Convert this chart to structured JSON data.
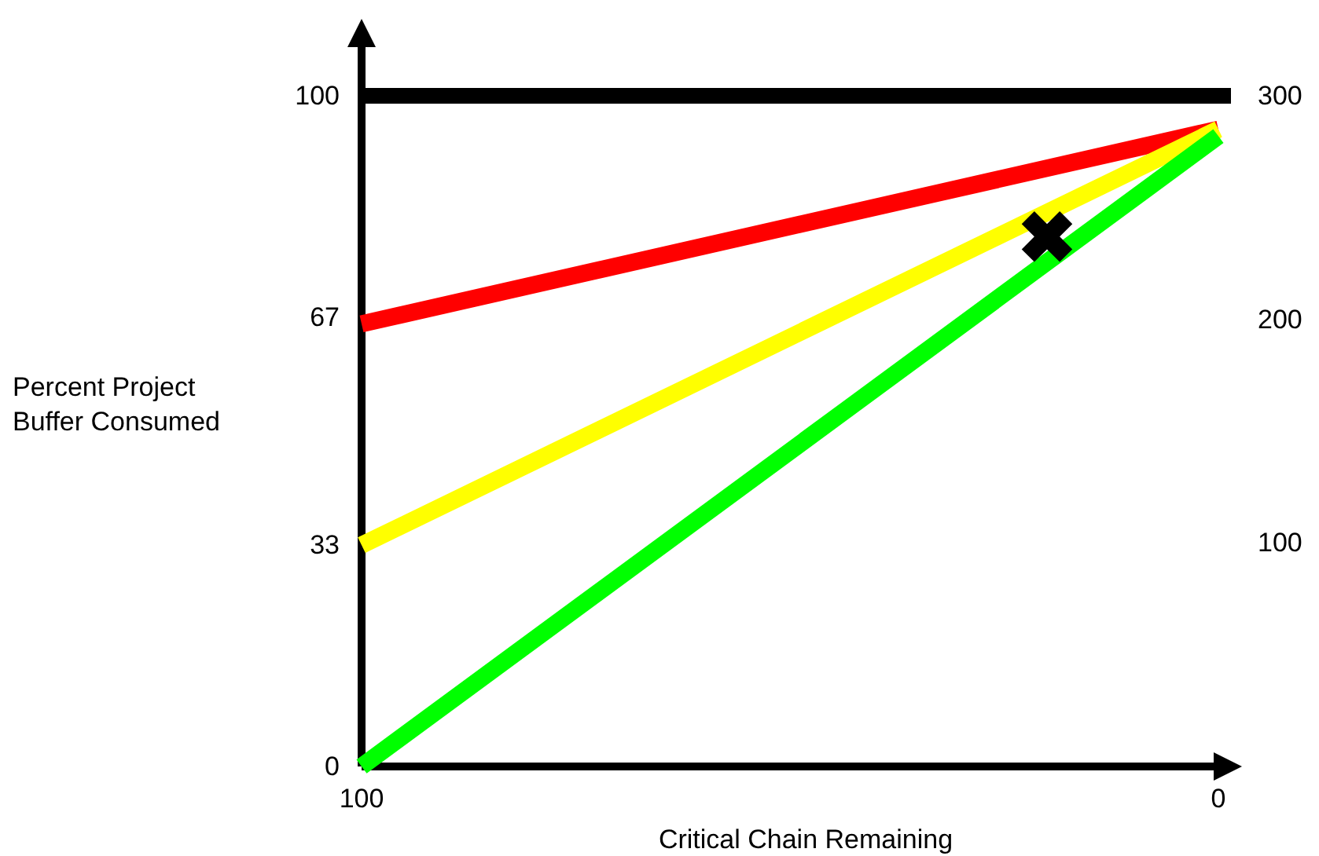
{
  "chart_data": {
    "type": "line",
    "xlabel": "Critical Chain Remaining",
    "ylabel": "Percent Project Buffer Consumed",
    "xlim": [
      100,
      0
    ],
    "xticks": [
      100,
      0
    ],
    "ylim": [
      0,
      100
    ],
    "yticks": [
      0,
      33,
      67,
      100
    ],
    "y2lim": [
      0,
      300
    ],
    "y2ticks": [
      100,
      200,
      300
    ],
    "grid": false,
    "line_style": "solid",
    "ref_lines": [
      {
        "axis": "y",
        "value": 100,
        "color": "#000000"
      }
    ],
    "series": [
      {
        "color": "#ff0000",
        "x": [
          100,
          0
        ],
        "values": [
          66,
          95
        ]
      },
      {
        "color": "#ffff00",
        "x": [
          100,
          0
        ],
        "values": [
          33,
          95
        ]
      },
      {
        "color": "#00ff00",
        "x": [
          100,
          0
        ],
        "values": [
          0,
          94
        ]
      },
      {
        "type": "scatter",
        "marker": "cross",
        "color": "#000000",
        "x": [
          20
        ],
        "values": [
          79
        ]
      }
    ]
  }
}
